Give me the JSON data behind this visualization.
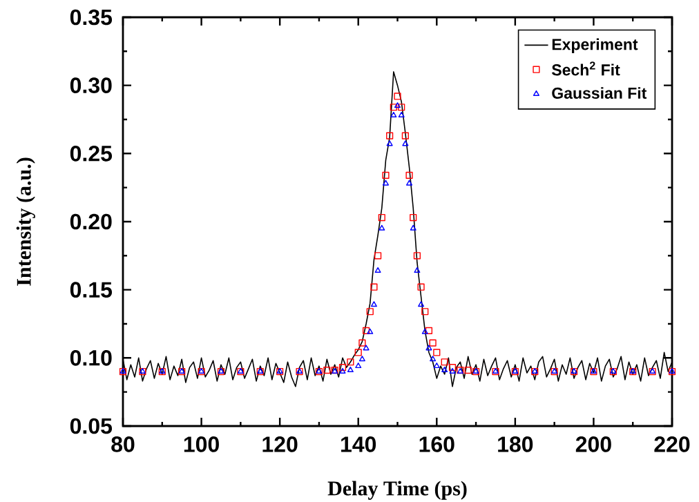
{
  "chart_data": {
    "type": "line",
    "xlabel": "Delay Time (ps)",
    "ylabel": "Intensity (a.u.)",
    "xlim": [
      80,
      220
    ],
    "ylim": [
      0.05,
      0.35
    ],
    "xticks": [
      80,
      100,
      120,
      140,
      160,
      180,
      200,
      220
    ],
    "yticks": [
      {
        "value": 0.05,
        "label": "0.05"
      },
      {
        "value": 0.1,
        "label": "0.10"
      },
      {
        "value": 0.15,
        "label": "0.15"
      },
      {
        "value": 0.2,
        "label": "0.20"
      },
      {
        "value": 0.25,
        "label": "0.25"
      },
      {
        "value": 0.3,
        "label": "0.30"
      },
      {
        "value": 0.35,
        "label": "0.35"
      }
    ],
    "grid": false,
    "legend": "top right",
    "series": [
      {
        "name": "Experiment",
        "color": "#000000",
        "marker": "none",
        "x": [
          80,
          81,
          82,
          83,
          84,
          85,
          86,
          87,
          88,
          89,
          90,
          91,
          92,
          93,
          94,
          95,
          96,
          97,
          98,
          99,
          100,
          101,
          102,
          103,
          104,
          105,
          106,
          107,
          108,
          109,
          110,
          111,
          112,
          113,
          114,
          115,
          116,
          117,
          118,
          119,
          120,
          121,
          122,
          123,
          124,
          125,
          126,
          127,
          128,
          129,
          130,
          131,
          132,
          133,
          134,
          135,
          136,
          137,
          138,
          139,
          140,
          141,
          142,
          143,
          144,
          145,
          146,
          147,
          148,
          149,
          150,
          151,
          152,
          153,
          154,
          155,
          156,
          157,
          158,
          159,
          160,
          161,
          162,
          163,
          164,
          165,
          166,
          167,
          168,
          169,
          170,
          171,
          172,
          173,
          174,
          175,
          176,
          177,
          178,
          179,
          180,
          181,
          182,
          183,
          184,
          185,
          186,
          187,
          188,
          189,
          190,
          191,
          192,
          193,
          194,
          195,
          196,
          197,
          198,
          199,
          200,
          201,
          202,
          203,
          204,
          205,
          206,
          207,
          208,
          209,
          210,
          211,
          212,
          213,
          214,
          215,
          216,
          217,
          218,
          219,
          220
        ],
        "values": [
          0.099,
          0.084,
          0.095,
          0.086,
          0.1,
          0.083,
          0.092,
          0.098,
          0.085,
          0.096,
          0.088,
          0.101,
          0.084,
          0.094,
          0.087,
          0.099,
          0.082,
          0.093,
          0.097,
          0.085,
          0.1,
          0.086,
          0.091,
          0.098,
          0.083,
          0.095,
          0.088,
          0.1,
          0.084,
          0.093,
          0.097,
          0.085,
          0.092,
          0.099,
          0.083,
          0.094,
          0.087,
          0.1,
          0.084,
          0.096,
          0.089,
          0.082,
          0.097,
          0.086,
          0.079,
          0.093,
          0.098,
          0.084,
          0.1,
          0.087,
          0.094,
          0.083,
          0.099,
          0.088,
          0.095,
          0.086,
          0.1,
          0.093,
          0.097,
          0.102,
          0.106,
          0.112,
          0.125,
          0.14,
          0.172,
          0.19,
          0.21,
          0.245,
          0.262,
          0.31,
          0.3,
          0.288,
          0.265,
          0.24,
          0.21,
          0.17,
          0.145,
          0.12,
          0.104,
          0.097,
          0.085,
          0.094,
          0.088,
          0.1,
          0.079,
          0.093,
          0.097,
          0.085,
          0.101,
          0.088,
          0.095,
          0.083,
          0.099,
          0.087,
          0.094,
          0.1,
          0.084,
          0.092,
          0.098,
          0.086,
          0.095,
          0.083,
          0.1,
          0.089,
          0.094,
          0.084,
          0.097,
          0.101,
          0.086,
          0.092,
          0.099,
          0.083,
          0.095,
          0.088,
          0.1,
          0.085,
          0.093,
          0.098,
          0.084,
          0.096,
          0.089,
          0.1,
          0.083,
          0.094,
          0.099,
          0.086,
          0.092,
          0.101,
          0.084,
          0.097,
          0.088,
          0.095,
          0.083,
          0.1,
          0.087,
          0.093,
          0.098,
          0.085,
          0.104,
          0.09,
          0.097
        ]
      },
      {
        "name": "Sech$^{2}$ Fit",
        "type": "scatter",
        "color": "#ff0000",
        "marker": "square",
        "x": [
          80,
          85,
          90,
          95,
          100,
          105,
          110,
          115,
          120,
          125,
          130,
          132,
          134,
          136,
          138,
          140,
          141,
          142,
          143,
          144,
          145,
          146,
          147,
          148,
          149,
          150,
          151,
          152,
          153,
          154,
          155,
          156,
          157,
          158,
          159,
          160,
          162,
          164,
          166,
          168,
          170,
          175,
          180,
          185,
          190,
          195,
          200,
          205,
          210,
          215,
          220
        ],
        "values": [
          0.09,
          0.09,
          0.09,
          0.09,
          0.09,
          0.09,
          0.09,
          0.09,
          0.09,
          0.09,
          0.09,
          0.091,
          0.091,
          0.093,
          0.097,
          0.104,
          0.111,
          0.12,
          0.134,
          0.152,
          0.175,
          0.203,
          0.234,
          0.263,
          0.284,
          0.292,
          0.284,
          0.263,
          0.234,
          0.203,
          0.175,
          0.152,
          0.134,
          0.12,
          0.111,
          0.104,
          0.097,
          0.093,
          0.091,
          0.091,
          0.09,
          0.09,
          0.09,
          0.09,
          0.09,
          0.09,
          0.09,
          0.09,
          0.09,
          0.09,
          0.09
        ]
      },
      {
        "name": "Gaussian Fit",
        "type": "scatter",
        "color": "#0000ff",
        "marker": "triangle",
        "x": [
          80,
          85,
          90,
          95,
          100,
          105,
          110,
          115,
          120,
          125,
          130,
          134,
          136,
          138,
          140,
          141,
          142,
          143,
          144,
          145,
          146,
          147,
          148,
          149,
          150,
          151,
          152,
          153,
          154,
          155,
          156,
          157,
          158,
          159,
          160,
          162,
          164,
          166,
          170,
          175,
          180,
          185,
          190,
          195,
          200,
          205,
          210,
          215,
          220
        ],
        "values": [
          0.09,
          0.09,
          0.09,
          0.09,
          0.09,
          0.09,
          0.09,
          0.09,
          0.09,
          0.09,
          0.09,
          0.09,
          0.09,
          0.091,
          0.094,
          0.099,
          0.107,
          0.119,
          0.139,
          0.164,
          0.195,
          0.228,
          0.257,
          0.278,
          0.285,
          0.278,
          0.257,
          0.228,
          0.195,
          0.164,
          0.139,
          0.119,
          0.107,
          0.099,
          0.094,
          0.091,
          0.09,
          0.09,
          0.09,
          0.09,
          0.09,
          0.09,
          0.09,
          0.09,
          0.09,
          0.09,
          0.09,
          0.09,
          0.09
        ]
      }
    ]
  }
}
